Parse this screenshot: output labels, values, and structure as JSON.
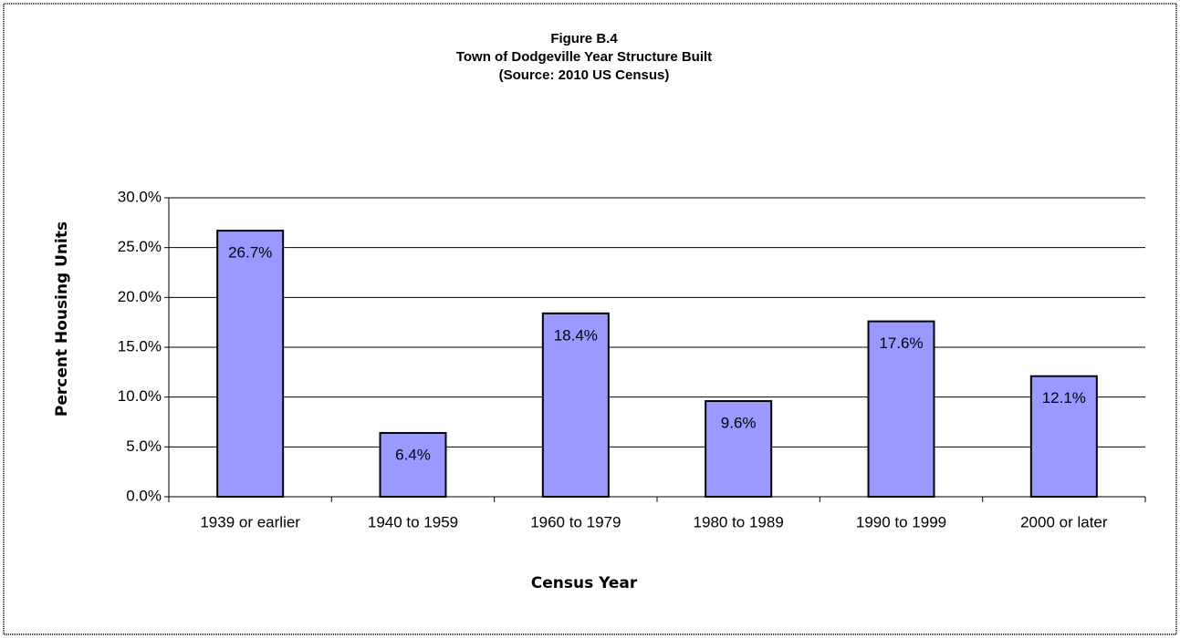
{
  "chart_data": {
    "type": "bar",
    "title": "Figure B.4",
    "subtitle": [
      "Town of Dodgeville Year Structure Built",
      "(Source:  2010 US Census)"
    ],
    "x_label": "Census Year",
    "y_label": "Percent Housing Units",
    "categories": [
      "1939 or earlier",
      "1940 to 1959",
      "1960 to 1979",
      "1980 to 1989",
      "1990 to 1999",
      "2000 or later"
    ],
    "values": [
      26.7,
      6.4,
      18.4,
      9.6,
      17.6,
      12.1
    ],
    "value_labels": [
      "26.7%",
      "6.4%",
      "18.4%",
      "9.6%",
      "17.6%",
      "12.1%"
    ],
    "color": "#9999ff",
    "ylim": [
      0,
      30
    ],
    "yticks": [
      {
        "value": 0,
        "label": "0.0%"
      },
      {
        "value": 5,
        "label": "5.0%"
      },
      {
        "value": 10,
        "label": "10.0%"
      },
      {
        "value": 15,
        "label": "15.0%"
      },
      {
        "value": 20,
        "label": "20.0%"
      },
      {
        "value": 25,
        "label": "25.0%"
      },
      {
        "value": 30,
        "label": "30.0%"
      }
    ],
    "grid": true
  }
}
